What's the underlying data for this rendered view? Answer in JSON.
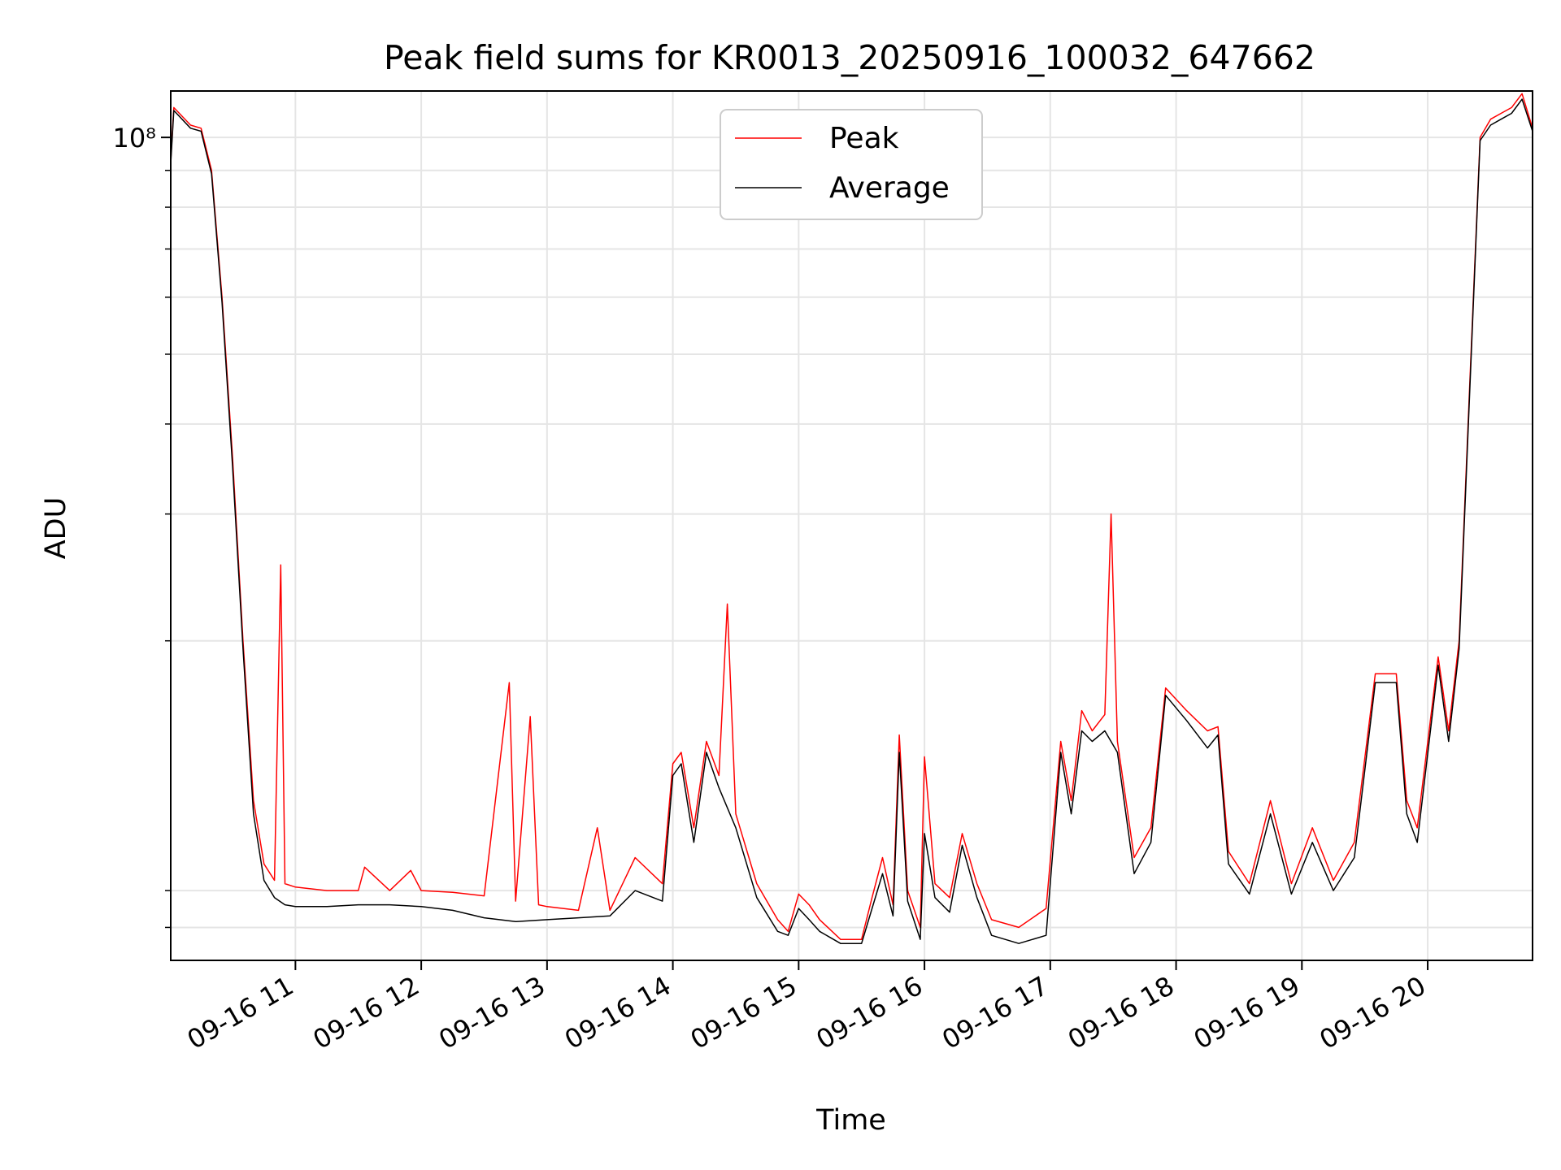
{
  "chart_data": {
    "type": "line",
    "title": "Peak field sums for KR0013_20250916_100032_647662",
    "xlabel": "Time",
    "ylabel": "ADU",
    "yscale": "log",
    "ylim": [
      7200000,
      116000000
    ],
    "xlim": [
      "2025-09-16T10:00:32",
      "2025-09-16T20:50:00"
    ],
    "x_ticks": [
      "2025-09-16T11:00",
      "2025-09-16T12:00",
      "2025-09-16T13:00",
      "2025-09-16T14:00",
      "2025-09-16T15:00",
      "2025-09-16T16:00",
      "2025-09-16T17:00",
      "2025-09-16T18:00",
      "2025-09-16T19:00",
      "2025-09-16T20:00"
    ],
    "x_tick_labels": [
      "09-16 11",
      "09-16 12",
      "09-16 13",
      "09-16 14",
      "09-16 15",
      "09-16 16",
      "09-16 17",
      "09-16 18",
      "09-16 19",
      "09-16 20"
    ],
    "y_major_ticks": [
      100000000
    ],
    "y_major_tick_labels": [
      "10⁸"
    ],
    "y_minor_ticks": [
      8000000,
      9000000,
      20000000,
      30000000,
      40000000,
      50000000,
      60000000,
      70000000,
      80000000,
      90000000
    ],
    "grid": true,
    "legend_position": "top-center",
    "series": [
      {
        "name": "Peak",
        "color": "#ff0000",
        "points": [
          [
            "2025-09-16T10:00:32",
            93000000
          ],
          [
            "2025-09-16T10:02",
            110000000
          ],
          [
            "2025-09-16T10:10",
            104000000
          ],
          [
            "2025-09-16T10:15",
            103000000
          ],
          [
            "2025-09-16T10:20",
            90000000
          ],
          [
            "2025-09-16T10:25",
            60000000
          ],
          [
            "2025-09-16T10:30",
            36000000
          ],
          [
            "2025-09-16T10:35",
            20000000
          ],
          [
            "2025-09-16T10:40",
            12000000
          ],
          [
            "2025-09-16T10:45",
            9800000
          ],
          [
            "2025-09-16T10:50",
            9300000
          ],
          [
            "2025-09-16T10:53",
            25500000
          ],
          [
            "2025-09-16T10:55",
            9200000
          ],
          [
            "2025-09-16T11:00",
            9100000
          ],
          [
            "2025-09-16T11:15",
            9000000
          ],
          [
            "2025-09-16T11:30",
            9000000
          ],
          [
            "2025-09-16T11:33",
            9700000
          ],
          [
            "2025-09-16T11:45",
            9000000
          ],
          [
            "2025-09-16T11:55",
            9600000
          ],
          [
            "2025-09-16T12:00",
            9000000
          ],
          [
            "2025-09-16T12:15",
            8950000
          ],
          [
            "2025-09-16T12:30",
            8850000
          ],
          [
            "2025-09-16T12:42",
            17500000
          ],
          [
            "2025-09-16T12:45",
            8700000
          ],
          [
            "2025-09-16T12:52",
            15700000
          ],
          [
            "2025-09-16T12:56",
            8600000
          ],
          [
            "2025-09-16T13:00",
            8550000
          ],
          [
            "2025-09-16T13:15",
            8450000
          ],
          [
            "2025-09-16T13:24",
            11000000
          ],
          [
            "2025-09-16T13:30",
            8450000
          ],
          [
            "2025-09-16T13:42",
            10000000
          ],
          [
            "2025-09-16T13:55",
            9200000
          ],
          [
            "2025-09-16T14:00",
            13500000
          ],
          [
            "2025-09-16T14:04",
            14000000
          ],
          [
            "2025-09-16T14:10",
            11000000
          ],
          [
            "2025-09-16T14:16",
            14500000
          ],
          [
            "2025-09-16T14:22",
            13000000
          ],
          [
            "2025-09-16T14:26",
            22500000
          ],
          [
            "2025-09-16T14:30",
            11500000
          ],
          [
            "2025-09-16T14:40",
            9200000
          ],
          [
            "2025-09-16T14:50",
            8200000
          ],
          [
            "2025-09-16T14:55",
            7900000
          ],
          [
            "2025-09-16T15:00",
            8900000
          ],
          [
            "2025-09-16T15:05",
            8600000
          ],
          [
            "2025-09-16T15:10",
            8200000
          ],
          [
            "2025-09-16T15:20",
            7700000
          ],
          [
            "2025-09-16T15:30",
            7700000
          ],
          [
            "2025-09-16T15:35",
            8800000
          ],
          [
            "2025-09-16T15:40",
            10000000
          ],
          [
            "2025-09-16T15:45",
            8600000
          ],
          [
            "2025-09-16T15:48",
            14800000
          ],
          [
            "2025-09-16T15:52",
            9000000
          ],
          [
            "2025-09-16T15:58",
            8000000
          ],
          [
            "2025-09-16T16:00",
            13800000
          ],
          [
            "2025-09-16T16:05",
            9200000
          ],
          [
            "2025-09-16T16:12",
            8800000
          ],
          [
            "2025-09-16T16:18",
            10800000
          ],
          [
            "2025-09-16T16:25",
            9200000
          ],
          [
            "2025-09-16T16:32",
            8200000
          ],
          [
            "2025-09-16T16:45",
            8000000
          ],
          [
            "2025-09-16T16:58",
            8500000
          ],
          [
            "2025-09-16T17:05",
            14500000
          ],
          [
            "2025-09-16T17:10",
            12000000
          ],
          [
            "2025-09-16T17:15",
            16000000
          ],
          [
            "2025-09-16T17:20",
            15000000
          ],
          [
            "2025-09-16T17:26",
            15800000
          ],
          [
            "2025-09-16T17:29",
            30000000
          ],
          [
            "2025-09-16T17:32",
            14500000
          ],
          [
            "2025-09-16T17:40",
            10000000
          ],
          [
            "2025-09-16T17:48",
            11000000
          ],
          [
            "2025-09-16T17:55",
            17200000
          ],
          [
            "2025-09-16T18:05",
            16000000
          ],
          [
            "2025-09-16T18:15",
            15000000
          ],
          [
            "2025-09-16T18:20",
            15200000
          ],
          [
            "2025-09-16T18:25",
            10200000
          ],
          [
            "2025-09-16T18:35",
            9200000
          ],
          [
            "2025-09-16T18:45",
            12000000
          ],
          [
            "2025-09-16T18:55",
            9200000
          ],
          [
            "2025-09-16T19:05",
            11000000
          ],
          [
            "2025-09-16T19:15",
            9300000
          ],
          [
            "2025-09-16T19:25",
            10500000
          ],
          [
            "2025-09-16T19:35",
            18000000
          ],
          [
            "2025-09-16T19:45",
            18000000
          ],
          [
            "2025-09-16T19:50",
            12000000
          ],
          [
            "2025-09-16T19:55",
            11000000
          ],
          [
            "2025-09-16T20:05",
            19000000
          ],
          [
            "2025-09-16T20:10",
            15000000
          ],
          [
            "2025-09-16T20:15",
            20000000
          ],
          [
            "2025-09-16T20:20",
            45000000
          ],
          [
            "2025-09-16T20:25",
            100000000
          ],
          [
            "2025-09-16T20:30",
            106000000
          ],
          [
            "2025-09-16T20:35",
            108000000
          ],
          [
            "2025-09-16T20:40",
            110000000
          ],
          [
            "2025-09-16T20:45",
            115000000
          ],
          [
            "2025-09-16T20:50:00",
            103000000
          ]
        ]
      },
      {
        "name": "Average",
        "color": "#000000",
        "points": [
          [
            "2025-09-16T10:00:32",
            92000000
          ],
          [
            "2025-09-16T10:02",
            109000000
          ],
          [
            "2025-09-16T10:10",
            103000000
          ],
          [
            "2025-09-16T10:15",
            102000000
          ],
          [
            "2025-09-16T10:20",
            89000000
          ],
          [
            "2025-09-16T10:25",
            59000000
          ],
          [
            "2025-09-16T10:30",
            35000000
          ],
          [
            "2025-09-16T10:35",
            19500000
          ],
          [
            "2025-09-16T10:40",
            11500000
          ],
          [
            "2025-09-16T10:45",
            9300000
          ],
          [
            "2025-09-16T10:50",
            8800000
          ],
          [
            "2025-09-16T10:55",
            8600000
          ],
          [
            "2025-09-16T11:00",
            8550000
          ],
          [
            "2025-09-16T11:15",
            8550000
          ],
          [
            "2025-09-16T11:30",
            8600000
          ],
          [
            "2025-09-16T11:45",
            8600000
          ],
          [
            "2025-09-16T12:00",
            8550000
          ],
          [
            "2025-09-16T12:15",
            8450000
          ],
          [
            "2025-09-16T12:30",
            8250000
          ],
          [
            "2025-09-16T12:45",
            8150000
          ],
          [
            "2025-09-16T13:00",
            8200000
          ],
          [
            "2025-09-16T13:15",
            8250000
          ],
          [
            "2025-09-16T13:30",
            8300000
          ],
          [
            "2025-09-16T13:42",
            9000000
          ],
          [
            "2025-09-16T13:55",
            8700000
          ],
          [
            "2025-09-16T14:00",
            13000000
          ],
          [
            "2025-09-16T14:04",
            13500000
          ],
          [
            "2025-09-16T14:10",
            10500000
          ],
          [
            "2025-09-16T14:16",
            14000000
          ],
          [
            "2025-09-16T14:22",
            12500000
          ],
          [
            "2025-09-16T14:30",
            11000000
          ],
          [
            "2025-09-16T14:40",
            8800000
          ],
          [
            "2025-09-16T14:50",
            7900000
          ],
          [
            "2025-09-16T14:55",
            7800000
          ],
          [
            "2025-09-16T15:00",
            8500000
          ],
          [
            "2025-09-16T15:05",
            8200000
          ],
          [
            "2025-09-16T15:10",
            7900000
          ],
          [
            "2025-09-16T15:20",
            7600000
          ],
          [
            "2025-09-16T15:30",
            7600000
          ],
          [
            "2025-09-16T15:35",
            8500000
          ],
          [
            "2025-09-16T15:40",
            9500000
          ],
          [
            "2025-09-16T15:45",
            8300000
          ],
          [
            "2025-09-16T15:48",
            14000000
          ],
          [
            "2025-09-16T15:52",
            8700000
          ],
          [
            "2025-09-16T15:58",
            7700000
          ],
          [
            "2025-09-16T16:00",
            10800000
          ],
          [
            "2025-09-16T16:05",
            8800000
          ],
          [
            "2025-09-16T16:12",
            8400000
          ],
          [
            "2025-09-16T16:18",
            10400000
          ],
          [
            "2025-09-16T16:25",
            8800000
          ],
          [
            "2025-09-16T16:32",
            7800000
          ],
          [
            "2025-09-16T16:45",
            7600000
          ],
          [
            "2025-09-16T16:58",
            7800000
          ],
          [
            "2025-09-16T17:05",
            14000000
          ],
          [
            "2025-09-16T17:10",
            11500000
          ],
          [
            "2025-09-16T17:15",
            15000000
          ],
          [
            "2025-09-16T17:20",
            14500000
          ],
          [
            "2025-09-16T17:26",
            15000000
          ],
          [
            "2025-09-16T17:32",
            14000000
          ],
          [
            "2025-09-16T17:40",
            9500000
          ],
          [
            "2025-09-16T17:48",
            10500000
          ],
          [
            "2025-09-16T17:55",
            16800000
          ],
          [
            "2025-09-16T18:05",
            15500000
          ],
          [
            "2025-09-16T18:15",
            14200000
          ],
          [
            "2025-09-16T18:20",
            14800000
          ],
          [
            "2025-09-16T18:25",
            9800000
          ],
          [
            "2025-09-16T18:35",
            8900000
          ],
          [
            "2025-09-16T18:45",
            11500000
          ],
          [
            "2025-09-16T18:55",
            8900000
          ],
          [
            "2025-09-16T19:05",
            10500000
          ],
          [
            "2025-09-16T19:15",
            9000000
          ],
          [
            "2025-09-16T19:25",
            10000000
          ],
          [
            "2025-09-16T19:35",
            17500000
          ],
          [
            "2025-09-16T19:45",
            17500000
          ],
          [
            "2025-09-16T19:50",
            11500000
          ],
          [
            "2025-09-16T19:55",
            10500000
          ],
          [
            "2025-09-16T20:05",
            18500000
          ],
          [
            "2025-09-16T20:10",
            14500000
          ],
          [
            "2025-09-16T20:15",
            19500000
          ],
          [
            "2025-09-16T20:20",
            44000000
          ],
          [
            "2025-09-16T20:25",
            99000000
          ],
          [
            "2025-09-16T20:30",
            104000000
          ],
          [
            "2025-09-16T20:35",
            106000000
          ],
          [
            "2025-09-16T20:40",
            108000000
          ],
          [
            "2025-09-16T20:45",
            113000000
          ],
          [
            "2025-09-16T20:50:00",
            102000000
          ]
        ]
      }
    ]
  }
}
